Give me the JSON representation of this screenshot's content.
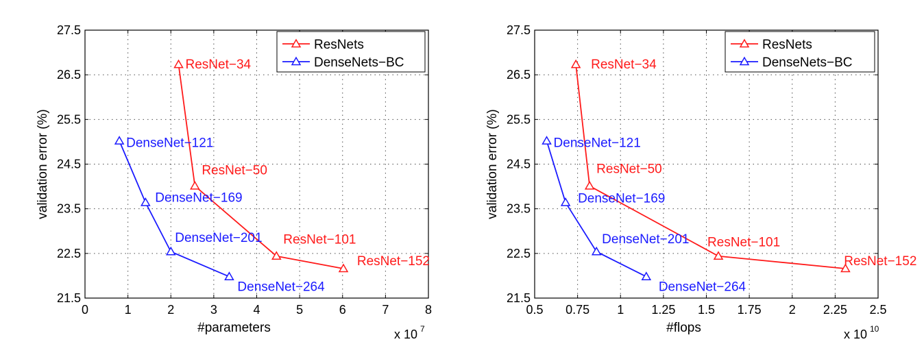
{
  "chart_data": [
    {
      "type": "line",
      "xlabel": "#parameters",
      "ylabel": "validation error (%)",
      "x_multiplier_label": "x 10",
      "x_multiplier_exp": "7",
      "xlim": [
        0,
        8
      ],
      "ylim": [
        21.5,
        27.5
      ],
      "xticks": [
        0,
        1,
        2,
        3,
        4,
        5,
        6,
        7,
        8
      ],
      "xtick_labels": [
        "0",
        "1",
        "2",
        "3",
        "4",
        "5",
        "6",
        "7",
        "8"
      ],
      "yticks": [
        21.5,
        22.5,
        23.5,
        24.5,
        25.5,
        26.5,
        27.5
      ],
      "ytick_labels": [
        "21.5",
        "22.5",
        "23.5",
        "24.5",
        "25.5",
        "26.5",
        "27.5"
      ],
      "grid": true,
      "legend_position": "top-right",
      "series": [
        {
          "name": "ResNets",
          "color": "#ff1a1a",
          "points": [
            {
              "x": 2.18,
              "y": 26.73,
              "label": "ResNet−34"
            },
            {
              "x": 2.56,
              "y": 24.01,
              "label": "ResNet−50"
            },
            {
              "x": 4.46,
              "y": 22.44,
              "label": "ResNet−101"
            },
            {
              "x": 6.02,
              "y": 22.16,
              "label": "ResNet−152"
            }
          ]
        },
        {
          "name": "DenseNets−BC",
          "color": "#1a1aff",
          "points": [
            {
              "x": 0.8,
              "y": 25.02,
              "label": "DenseNet−121"
            },
            {
              "x": 1.41,
              "y": 23.64,
              "label": "DenseNet−169"
            },
            {
              "x": 2.0,
              "y": 22.54,
              "label": "DenseNet−201"
            },
            {
              "x": 3.36,
              "y": 21.98,
              "label": "DenseNet−264"
            }
          ]
        }
      ]
    },
    {
      "type": "line",
      "xlabel": "#flops",
      "ylabel": "validation error (%)",
      "x_multiplier_label": "x 10",
      "x_multiplier_exp": "10",
      "xlim": [
        0.5,
        2.5
      ],
      "ylim": [
        21.5,
        27.5
      ],
      "xticks": [
        0.5,
        0.75,
        1,
        1.25,
        1.5,
        1.75,
        2,
        2.25,
        2.5
      ],
      "xtick_labels": [
        "0.5",
        "0.75",
        "1",
        "1.25",
        "1.5",
        "1.75",
        "2",
        "2.25",
        "2.5"
      ],
      "yticks": [
        21.5,
        22.5,
        23.5,
        24.5,
        25.5,
        26.5,
        27.5
      ],
      "ytick_labels": [
        "21.5",
        "22.5",
        "23.5",
        "24.5",
        "25.5",
        "26.5",
        "27.5"
      ],
      "grid": true,
      "legend_position": "top-right",
      "series": [
        {
          "name": "ResNets",
          "color": "#ff1a1a",
          "points": [
            {
              "x": 0.74,
              "y": 26.73,
              "label": "ResNet−34"
            },
            {
              "x": 0.82,
              "y": 24.01,
              "label": "ResNet−50"
            },
            {
              "x": 1.57,
              "y": 22.44,
              "label": "ResNet−101"
            },
            {
              "x": 2.31,
              "y": 22.16,
              "label": "ResNet−152"
            }
          ]
        },
        {
          "name": "DenseNets−BC",
          "color": "#1a1aff",
          "points": [
            {
              "x": 0.57,
              "y": 25.02,
              "label": "DenseNet−121"
            },
            {
              "x": 0.68,
              "y": 23.64,
              "label": "DenseNet−169"
            },
            {
              "x": 0.86,
              "y": 22.54,
              "label": "DenseNet−201"
            },
            {
              "x": 1.15,
              "y": 21.98,
              "label": "DenseNet−264"
            }
          ]
        }
      ]
    }
  ]
}
